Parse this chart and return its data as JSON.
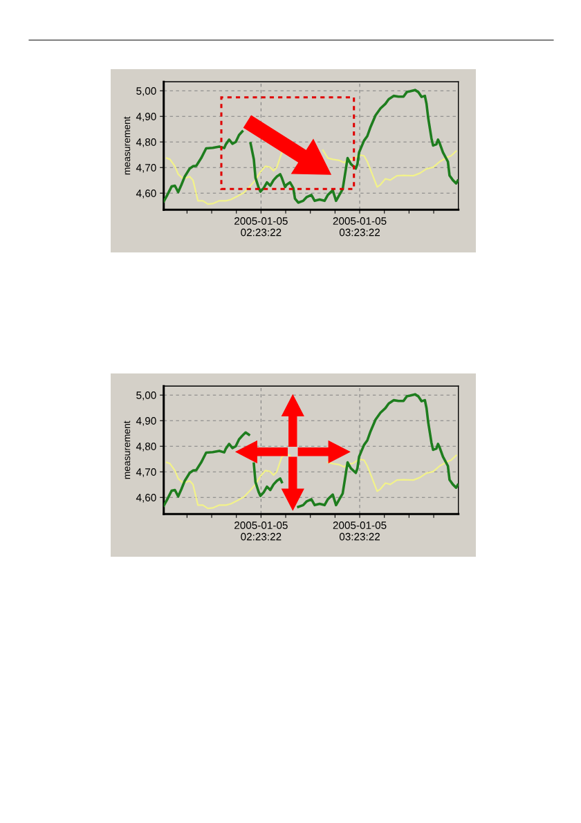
{
  "chart_data": [
    {
      "type": "line",
      "ylabel": "measurement",
      "xlim": [
        "2005-01-05T01:24:12",
        "2005-01-05T04:23:22"
      ],
      "ylim": [
        4.535,
        5.035
      ],
      "xticks": [
        {
          "value": "2005-01-05T01:38:22",
          "label": null
        },
        {
          "value": "2005-01-05T01:53:22",
          "label": null
        },
        {
          "value": "2005-01-05T02:08:22",
          "label": null
        },
        {
          "value": "2005-01-05T02:23:22",
          "label": "2005-01-05\n02:23:22"
        },
        {
          "value": "2005-01-05T02:38:22",
          "label": null
        },
        {
          "value": "2005-01-05T02:53:22",
          "label": null
        },
        {
          "value": "2005-01-05T03:08:22",
          "label": null
        },
        {
          "value": "2005-01-05T03:23:22",
          "label": "2005-01-05\n03:23:22"
        },
        {
          "value": "2005-01-05T03:38:22",
          "label": null
        },
        {
          "value": "2005-01-05T03:53:22",
          "label": null
        },
        {
          "value": "2005-01-05T04:08:22",
          "label": null
        }
      ],
      "yticks": [
        {
          "value": 4.6,
          "label": "4,60"
        },
        {
          "value": 4.7,
          "label": "4,70"
        },
        {
          "value": 4.8,
          "label": "4,80"
        },
        {
          "value": 4.9,
          "label": "4,90"
        },
        {
          "value": 5.0,
          "label": "5,00"
        }
      ],
      "grid": true,
      "series": [
        {
          "color": "#1e7d1e",
          "x": [
            "2005-01-05T01:24:15",
            "2005-01-05T01:26",
            "2005-01-05T01:29",
            "2005-01-05T01:31",
            "2005-01-05T01:33",
            "2005-01-05T01:35",
            "2005-01-05T01:37",
            "2005-01-05T01:40",
            "2005-01-05T01:42",
            "2005-01-05T01:44",
            "2005-01-05T01:47",
            "2005-01-05T01:50",
            "2005-01-05T01:54",
            "2005-01-05T01:58",
            "2005-01-05T02:01",
            "2005-01-05T02:02",
            "2005-01-05T02:04",
            "2005-01-05T02:06",
            "2005-01-05T02:08",
            "2005-01-05T02:10",
            "2005-01-05T02:12",
            "2005-01-05T02:14",
            "2005-01-05T02:16",
            "2005-01-05T02:17",
            "2005-01-05T02:19",
            "2005-01-05T02:20",
            "2005-01-05T02:22",
            "2005-01-05T02:23",
            "2005-01-05T02:25",
            "2005-01-05T02:27",
            "2005-01-05T02:29",
            "2005-01-05T02:31",
            "2005-01-05T02:33",
            "2005-01-05T02:35",
            "2005-01-05T02:36",
            "2005-01-05T02:38",
            "2005-01-05T02:39",
            "2005-01-05T02:41",
            "2005-01-05T02:43",
            "2005-01-05T02:44",
            "2005-01-05T02:46",
            "2005-01-05T02:49",
            "2005-01-05T02:51",
            "2005-01-05T02:54",
            "2005-01-05T02:56",
            "2005-01-05T02:59",
            "2005-01-05T03:02",
            "2005-01-05T03:04",
            "2005-01-05T03:07",
            "2005-01-05T03:09",
            "2005-01-05T03:11",
            "2005-01-05T03:13",
            "2005-01-05T03:15",
            "2005-01-05T03:16",
            "2005-01-05T03:18",
            "2005-01-05T03:21",
            "2005-01-05T03:22",
            "2005-01-05T03:23",
            "2005-01-05T03:26",
            "2005-01-05T03:28",
            "2005-01-05T03:30",
            "2005-01-05T03:33",
            "2005-01-05T03:36",
            "2005-01-05T03:39",
            "2005-01-05T03:41",
            "2005-01-05T03:44",
            "2005-01-05T03:47",
            "2005-01-05T03:50",
            "2005-01-05T03:52",
            "2005-01-05T03:54",
            "2005-01-05T03:57",
            "2005-01-05T03:59",
            "2005-01-05T04:01",
            "2005-01-05T04:03",
            "2005-01-05T04:04",
            "2005-01-05T04:05",
            "2005-01-05T04:07",
            "2005-01-05T04:08",
            "2005-01-05T04:10",
            "2005-01-05T04:11",
            "2005-01-05T04:12",
            "2005-01-05T04:14",
            "2005-01-05T04:17",
            "2005-01-05T04:18",
            "2005-01-05T04:20",
            "2005-01-05T04:22",
            "2005-01-05T04:23"
          ],
          "values": [
            4.568,
            4.588,
            4.626,
            4.629,
            4.604,
            4.633,
            4.665,
            4.696,
            4.705,
            4.707,
            4.737,
            4.775,
            4.777,
            4.782,
            4.776,
            4.791,
            4.809,
            4.793,
            4.8,
            4.827,
            4.841,
            null,
            null,
            4.795,
            4.732,
            4.66,
            4.62,
            4.606,
            4.62,
            4.642,
            4.629,
            4.651,
            4.665,
            4.674,
            4.66,
            4.624,
            4.633,
            4.642,
            4.62,
            4.579,
            4.563,
            4.57,
            4.584,
            4.593,
            4.57,
            4.575,
            4.57,
            4.593,
            4.611,
            4.57,
            4.593,
            4.615,
            4.696,
            4.737,
            4.714,
            4.696,
            4.714,
            4.759,
            4.805,
            4.823,
            4.859,
            4.904,
            4.931,
            4.949,
            4.967,
            4.98,
            4.977,
            4.977,
            4.995,
            4.998,
            5.003,
            4.995,
            4.976,
            4.98,
            4.949,
            4.895,
            4.814,
            4.786,
            4.791,
            4.809,
            4.795,
            4.759,
            4.723,
            4.669,
            4.651,
            4.638,
            4.649
          ]
        },
        {
          "color": "#f2f28a",
          "x": [
            "2005-01-05T01:26",
            "2005-01-05T01:28",
            "2005-01-05T01:31",
            "2005-01-05T01:33",
            "2005-01-05T01:36",
            "2005-01-05T01:40",
            "2005-01-05T01:42",
            "2005-01-05T01:45",
            "2005-01-05T01:48",
            "2005-01-05T01:51",
            "2005-01-05T01:54",
            "2005-01-05T01:58",
            "2005-01-05T02:02",
            "2005-01-05T02:05",
            "2005-01-05T02:09",
            "2005-01-05T02:13",
            "2005-01-05T02:17",
            "2005-01-05T02:20",
            "2005-01-05T02:23",
            "2005-01-05T02:26",
            "2005-01-05T02:29",
            "2005-01-05T02:31",
            "2005-01-05T02:33",
            "2005-01-05T02:36",
            "2005-01-05T02:39",
            "2005-01-05T02:41",
            "2005-01-05T02:46",
            "2005-01-05T02:50",
            "2005-01-05T02:54",
            "2005-01-05T02:58",
            "2005-01-05T03:01",
            "2005-01-05T03:04",
            "2005-01-05T03:07",
            "2005-01-05T03:11",
            "2005-01-05T03:14",
            "2005-01-05T03:16",
            "2005-01-05T03:19",
            "2005-01-05T03:23",
            "2005-01-05T03:26",
            "2005-01-05T03:28",
            "2005-01-05T03:31",
            "2005-01-05T03:34",
            "2005-01-05T03:36",
            "2005-01-05T03:39",
            "2005-01-05T03:42",
            "2005-01-05T03:46",
            "2005-01-05T03:50",
            "2005-01-05T03:56",
            "2005-01-05T04:00",
            "2005-01-05T04:04",
            "2005-01-05T04:08",
            "2005-01-05T04:12",
            "2005-01-05T04:17",
            "2005-01-05T04:19",
            "2005-01-05T04:22"
          ],
          "values": [
            4.737,
            4.732,
            4.705,
            4.674,
            4.656,
            4.665,
            4.651,
            4.57,
            4.57,
            4.557,
            4.559,
            4.57,
            4.57,
            4.575,
            4.588,
            4.602,
            4.629,
            4.651,
            4.683,
            4.705,
            4.701,
            4.687,
            4.701,
            4.759,
            null,
            null,
            null,
            null,
            null,
            null,
            4.768,
            4.737,
            4.732,
            4.728,
            4.719,
            4.732,
            4.732,
            4.749,
            4.746,
            4.723,
            4.674,
            4.624,
            4.633,
            4.656,
            4.651,
            4.668,
            4.669,
            4.668,
            4.678,
            4.695,
            4.701,
            4.723,
            4.741,
            4.746,
            4.764
          ]
        }
      ]
    },
    {
      "type": "line",
      "ylabel": "measurement",
      "xlim": [
        "2005-01-05T01:24:12",
        "2005-01-05T04:23:22"
      ],
      "ylim": [
        4.535,
        5.035
      ],
      "xticks": [
        {
          "value": "2005-01-05T01:38:22",
          "label": null
        },
        {
          "value": "2005-01-05T01:53:22",
          "label": null
        },
        {
          "value": "2005-01-05T02:08:22",
          "label": null
        },
        {
          "value": "2005-01-05T02:23:22",
          "label": "2005-01-05\n02:23:22"
        },
        {
          "value": "2005-01-05T02:38:22",
          "label": null
        },
        {
          "value": "2005-01-05T02:53:22",
          "label": null
        },
        {
          "value": "2005-01-05T03:08:22",
          "label": null
        },
        {
          "value": "2005-01-05T03:23:22",
          "label": "2005-01-05\n03:23:22"
        },
        {
          "value": "2005-01-05T03:38:22",
          "label": null
        },
        {
          "value": "2005-01-05T03:53:22",
          "label": null
        },
        {
          "value": "2005-01-05T04:08:22",
          "label": null
        }
      ],
      "yticks": [
        {
          "value": 4.6,
          "label": "4,60"
        },
        {
          "value": 4.7,
          "label": "4,70"
        },
        {
          "value": 4.8,
          "label": "4,80"
        },
        {
          "value": 4.9,
          "label": "4,90"
        },
        {
          "value": 5.0,
          "label": "5,00"
        }
      ],
      "grid": true,
      "series": [
        {
          "color": "#1e7d1e",
          "x": [
            "2005-01-05T01:24:15",
            "2005-01-05T01:26",
            "2005-01-05T01:29",
            "2005-01-05T01:31",
            "2005-01-05T01:33",
            "2005-01-05T01:35",
            "2005-01-05T01:37",
            "2005-01-05T01:40",
            "2005-01-05T01:42",
            "2005-01-05T01:44",
            "2005-01-05T01:47",
            "2005-01-05T01:50",
            "2005-01-05T01:54",
            "2005-01-05T01:58",
            "2005-01-05T02:01",
            "2005-01-05T02:02",
            "2005-01-05T02:04",
            "2005-01-05T02:06",
            "2005-01-05T02:08",
            "2005-01-05T02:10",
            "2005-01-05T02:12",
            "2005-01-05T02:14",
            "2005-01-05T02:16",
            "2005-01-05T02:17",
            "2005-01-05T02:19",
            "2005-01-05T02:20",
            "2005-01-05T02:22",
            "2005-01-05T02:23",
            "2005-01-05T02:25",
            "2005-01-05T02:27",
            "2005-01-05T02:29",
            "2005-01-05T02:31",
            "2005-01-05T02:33",
            "2005-01-05T02:35",
            "2005-01-05T02:36",
            "2005-01-05T02:38",
            "2005-01-05T02:39",
            "2005-01-05T02:41",
            "2005-01-05T02:43",
            "2005-01-05T02:44",
            "2005-01-05T02:46",
            "2005-01-05T02:49",
            "2005-01-05T02:51",
            "2005-01-05T02:54",
            "2005-01-05T02:56",
            "2005-01-05T02:59",
            "2005-01-05T03:02",
            "2005-01-05T03:04",
            "2005-01-05T03:07",
            "2005-01-05T03:09",
            "2005-01-05T03:11",
            "2005-01-05T03:13",
            "2005-01-05T03:15",
            "2005-01-05T03:16",
            "2005-01-05T03:18",
            "2005-01-05T03:21",
            "2005-01-05T03:22",
            "2005-01-05T03:23",
            "2005-01-05T03:26",
            "2005-01-05T03:28",
            "2005-01-05T03:30",
            "2005-01-05T03:33",
            "2005-01-05T03:36",
            "2005-01-05T03:39",
            "2005-01-05T03:41",
            "2005-01-05T03:44",
            "2005-01-05T03:47",
            "2005-01-05T03:50",
            "2005-01-05T03:52",
            "2005-01-05T03:54",
            "2005-01-05T03:57",
            "2005-01-05T03:59",
            "2005-01-05T04:01",
            "2005-01-05T04:03",
            "2005-01-05T04:04",
            "2005-01-05T04:05",
            "2005-01-05T04:07",
            "2005-01-05T04:08",
            "2005-01-05T04:10",
            "2005-01-05T04:11",
            "2005-01-05T04:12",
            "2005-01-05T04:14",
            "2005-01-05T04:17",
            "2005-01-05T04:18",
            "2005-01-05T04:20",
            "2005-01-05T04:22",
            "2005-01-05T04:23"
          ],
          "values": [
            4.568,
            4.588,
            4.626,
            4.629,
            4.604,
            4.633,
            4.665,
            4.696,
            4.705,
            4.707,
            4.737,
            4.775,
            4.777,
            4.782,
            4.776,
            4.791,
            4.809,
            4.793,
            4.8,
            4.827,
            4.841,
            4.854,
            4.845,
            null,
            4.732,
            4.66,
            4.62,
            4.606,
            4.62,
            4.642,
            4.629,
            4.651,
            4.665,
            4.674,
            4.66,
            null,
            null,
            null,
            null,
            null,
            4.563,
            4.57,
            4.584,
            4.593,
            4.57,
            4.575,
            4.57,
            4.593,
            4.611,
            4.57,
            4.593,
            4.615,
            4.696,
            4.737,
            4.714,
            4.696,
            4.714,
            4.759,
            4.805,
            4.823,
            4.859,
            4.904,
            4.931,
            4.949,
            4.967,
            4.98,
            4.977,
            4.977,
            4.995,
            4.998,
            5.003,
            4.995,
            4.976,
            4.98,
            4.949,
            4.895,
            4.814,
            4.786,
            4.791,
            4.809,
            4.795,
            4.759,
            4.723,
            4.669,
            4.651,
            4.638,
            4.649
          ]
        },
        {
          "color": "#f2f28a",
          "x": [
            "2005-01-05T01:26",
            "2005-01-05T01:28",
            "2005-01-05T01:31",
            "2005-01-05T01:33",
            "2005-01-05T01:36",
            "2005-01-05T01:40",
            "2005-01-05T01:42",
            "2005-01-05T01:45",
            "2005-01-05T01:48",
            "2005-01-05T01:51",
            "2005-01-05T01:54",
            "2005-01-05T01:58",
            "2005-01-05T02:02",
            "2005-01-05T02:05",
            "2005-01-05T02:09",
            "2005-01-05T02:13",
            "2005-01-05T02:17",
            "2005-01-05T02:20",
            "2005-01-05T02:23",
            "2005-01-05T02:26",
            "2005-01-05T02:29",
            "2005-01-05T02:31",
            "2005-01-05T02:33",
            "2005-01-05T02:36",
            "2005-01-05T02:39",
            "2005-01-05T02:41",
            "2005-01-05T02:46",
            "2005-01-05T02:50",
            "2005-01-05T02:54",
            "2005-01-05T02:58",
            "2005-01-05T03:01",
            "2005-01-05T03:04",
            "2005-01-05T03:07",
            "2005-01-05T03:11",
            "2005-01-05T03:14",
            "2005-01-05T03:16",
            "2005-01-05T03:19",
            "2005-01-05T03:23",
            "2005-01-05T03:26",
            "2005-01-05T03:28",
            "2005-01-05T03:31",
            "2005-01-05T03:34",
            "2005-01-05T03:36",
            "2005-01-05T03:39",
            "2005-01-05T03:42",
            "2005-01-05T03:46",
            "2005-01-05T03:50",
            "2005-01-05T03:56",
            "2005-01-05T04:00",
            "2005-01-05T04:04",
            "2005-01-05T04:08",
            "2005-01-05T04:12",
            "2005-01-05T04:17",
            "2005-01-05T04:19",
            "2005-01-05T04:22"
          ],
          "values": [
            4.737,
            4.732,
            4.705,
            4.674,
            4.656,
            4.665,
            4.651,
            4.57,
            4.57,
            4.557,
            4.559,
            4.57,
            4.57,
            4.575,
            4.588,
            4.602,
            4.629,
            4.651,
            4.683,
            4.705,
            4.701,
            4.687,
            4.701,
            4.759,
            4.768,
            4.764,
            null,
            null,
            null,
            null,
            null,
            4.737,
            4.732,
            4.728,
            4.719,
            4.732,
            4.732,
            4.749,
            4.746,
            4.723,
            4.674,
            4.624,
            4.633,
            4.656,
            4.651,
            4.668,
            4.669,
            4.668,
            4.678,
            4.695,
            4.701,
            4.723,
            4.741,
            4.746,
            4.764
          ]
        }
      ]
    }
  ]
}
